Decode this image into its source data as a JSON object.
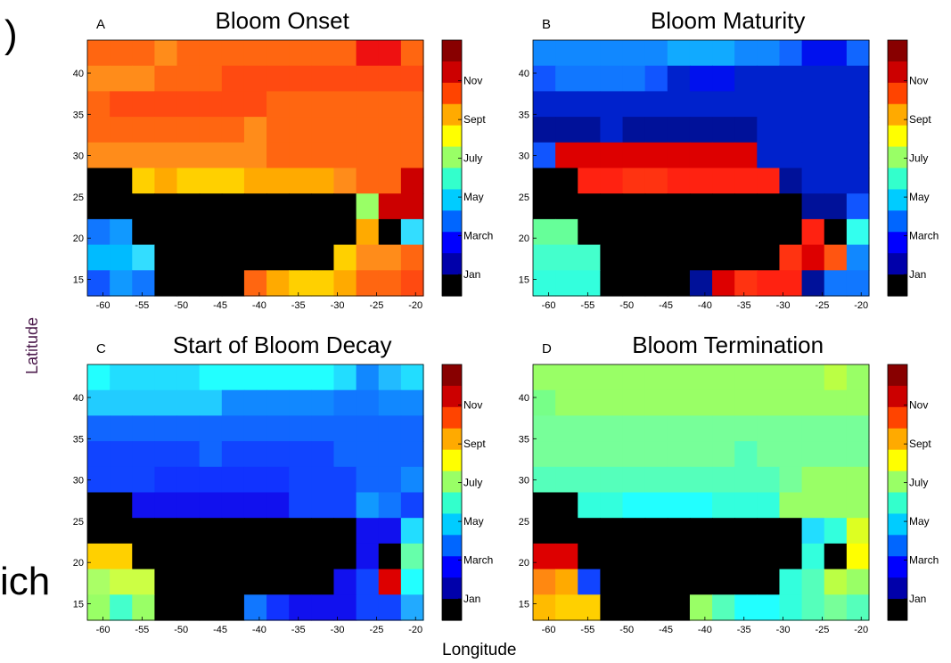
{
  "fragments": {
    "left_top": ")",
    "left_bottom": "ich"
  },
  "axis_labels": {
    "y": "Latitude",
    "x": "Longitude"
  },
  "chart_data": [
    {
      "type": "heatmap",
      "panel_letter": "A",
      "title": "Bloom Onset",
      "x_ticks": [
        "-60",
        "-55",
        "-50",
        "-45",
        "-40",
        "-35",
        "-30",
        "-25",
        "-20"
      ],
      "y_ticks": [
        "15",
        "20",
        "25",
        "30",
        "35",
        "40"
      ],
      "x_range": [
        -62,
        -19
      ],
      "y_range": [
        13,
        44
      ],
      "colorbar_ticks": [
        "Jan",
        "March",
        "May",
        "July",
        "Sept",
        "Nov"
      ],
      "colorbar_colors": [
        "#000000",
        "#0000aa",
        "#0000ff",
        "#0066ff",
        "#00ccff",
        "#33ffcc",
        "#99ff66",
        "#ffff00",
        "#ffaa00",
        "#ff4400",
        "#cc0000",
        "#880000"
      ],
      "cells": [
        [
          "#ff6611",
          "#ff6611",
          "#ff6611",
          "#ff8c1a",
          "#ff6611",
          "#ff6611",
          "#ff6611",
          "#ff6611",
          "#ff6611",
          "#ff6611",
          "#ff6611",
          "#ff6611",
          "#ee1111",
          "#ee1111",
          "#ff6611"
        ],
        [
          "#ff8c1a",
          "#ff8c1a",
          "#ff8c1a",
          "#ff6611",
          "#ff6611",
          "#ff6611",
          "#ff4a11",
          "#ff4a11",
          "#ff4a11",
          "#ff4a11",
          "#ff4a11",
          "#ff4a11",
          "#ff4a11",
          "#ff4a11",
          "#ff4a11"
        ],
        [
          "#ff6611",
          "#ff4a11",
          "#ff4a11",
          "#ff4a11",
          "#ff4a11",
          "#ff4a11",
          "#ff4a11",
          "#ff4a11",
          "#ff6611",
          "#ff6611",
          "#ff6611",
          "#ff6611",
          "#ff6611",
          "#ff6611",
          "#ff6611"
        ],
        [
          "#ff6611",
          "#ff6611",
          "#ff6611",
          "#ff6611",
          "#ff6611",
          "#ff6611",
          "#ff6611",
          "#ff8c1a",
          "#ff6611",
          "#ff6611",
          "#ff6611",
          "#ff6611",
          "#ff6611",
          "#ff6611",
          "#ff6611"
        ],
        [
          "#ff8c1a",
          "#ff8c1a",
          "#ff8c1a",
          "#ff8c1a",
          "#ff8c1a",
          "#ff8c1a",
          "#ff8c1a",
          "#ff8c1a",
          "#ff6611",
          "#ff6611",
          "#ff6611",
          "#ff6611",
          "#ff6611",
          "#ff6611",
          "#ff6611"
        ],
        [
          "#000000",
          "#000000",
          "#ffd000",
          "#ffaa00",
          "#ffd000",
          "#ffd000",
          "#ffd000",
          "#ffaa00",
          "#ffaa00",
          "#ffaa00",
          "#ffaa00",
          "#ff8c1a",
          "#ff6611",
          "#ff6611",
          "#cc0000"
        ],
        [
          "#000000",
          "#000000",
          "#000000",
          "#000000",
          "#000000",
          "#000000",
          "#000000",
          "#000000",
          "#000000",
          "#000000",
          "#000000",
          "#000000",
          "#99ff66",
          "#cc0000",
          "#cc0000"
        ],
        [
          "#1177ff",
          "#1199ff",
          "#000000",
          "#000000",
          "#000000",
          "#000000",
          "#000000",
          "#000000",
          "#000000",
          "#000000",
          "#000000",
          "#000000",
          "#ffaa00",
          "#000000",
          "#33ddff"
        ],
        [
          "#00bbff",
          "#00bbff",
          "#33ddff",
          "#000000",
          "#000000",
          "#000000",
          "#000000",
          "#000000",
          "#000000",
          "#000000",
          "#000000",
          "#ffd000",
          "#ff8c1a",
          "#ff8c1a",
          "#ff6611"
        ],
        [
          "#1155ff",
          "#1199ff",
          "#1177ff",
          "#000000",
          "#000000",
          "#000000",
          "#000000",
          "#ff6611",
          "#ffaa00",
          "#ffd000",
          "#ffd000",
          "#ffaa00",
          "#ff6611",
          "#ff6611",
          "#ff4a11"
        ]
      ]
    },
    {
      "type": "heatmap",
      "panel_letter": "B",
      "title": "Bloom Maturity",
      "x_ticks": [
        "-60",
        "-55",
        "-50",
        "-45",
        "-40",
        "-35",
        "-30",
        "-25",
        "-20"
      ],
      "y_ticks": [
        "15",
        "20",
        "25",
        "30",
        "35",
        "40"
      ],
      "x_range": [
        -62,
        -19
      ],
      "y_range": [
        13,
        44
      ],
      "colorbar_ticks": [
        "Jan",
        "March",
        "May",
        "July",
        "Sept",
        "Nov"
      ],
      "colorbar_colors": [
        "#000000",
        "#0000aa",
        "#0000ff",
        "#0066ff",
        "#00ccff",
        "#33ffcc",
        "#99ff66",
        "#ffff00",
        "#ffaa00",
        "#ff4400",
        "#cc0000",
        "#880000"
      ],
      "cells": [
        [
          "#1188ff",
          "#1188ff",
          "#1188ff",
          "#1188ff",
          "#1188ff",
          "#1188ff",
          "#11aaff",
          "#11aaff",
          "#11aaff",
          "#1188ff",
          "#1188ff",
          "#1166ff",
          "#0011ee",
          "#0011ee",
          "#1166ff"
        ],
        [
          "#1155ff",
          "#1177ff",
          "#1177ff",
          "#1177ff",
          "#1177ff",
          "#1155ff",
          "#0022cc",
          "#0011ee",
          "#0011ee",
          "#0022cc",
          "#0022cc",
          "#0022cc",
          "#0022cc",
          "#0022cc",
          "#0022cc"
        ],
        [
          "#0022cc",
          "#0022cc",
          "#0022cc",
          "#0022cc",
          "#0022cc",
          "#0022cc",
          "#0022cc",
          "#0022cc",
          "#0022cc",
          "#0022cc",
          "#0022cc",
          "#0022cc",
          "#0022cc",
          "#0022cc",
          "#0022cc"
        ],
        [
          "#001199",
          "#001199",
          "#001199",
          "#0022cc",
          "#001199",
          "#001199",
          "#001199",
          "#001199",
          "#001199",
          "#001199",
          "#0022cc",
          "#0022cc",
          "#0022cc",
          "#0022cc",
          "#0022cc"
        ],
        [
          "#1155ff",
          "#dd0000",
          "#dd0000",
          "#dd0000",
          "#dd0000",
          "#dd0000",
          "#dd0000",
          "#dd0000",
          "#dd0000",
          "#dd0000",
          "#0022cc",
          "#0022cc",
          "#0022cc",
          "#0022cc",
          "#0022cc"
        ],
        [
          "#000000",
          "#000000",
          "#ff2211",
          "#ff2211",
          "#ff3311",
          "#ff3311",
          "#ff2211",
          "#ff2211",
          "#ff2211",
          "#ff2211",
          "#ff2211",
          "#001199",
          "#0022cc",
          "#0022cc",
          "#0022cc"
        ],
        [
          "#000000",
          "#000000",
          "#000000",
          "#000000",
          "#000000",
          "#000000",
          "#000000",
          "#000000",
          "#000000",
          "#000000",
          "#000000",
          "#000000",
          "#001199",
          "#001199",
          "#1155ff"
        ],
        [
          "#66ff99",
          "#66ff99",
          "#000000",
          "#000000",
          "#000000",
          "#000000",
          "#000000",
          "#000000",
          "#000000",
          "#000000",
          "#000000",
          "#000000",
          "#ff2211",
          "#000000",
          "#33ffee"
        ],
        [
          "#44ffcc",
          "#44ffcc",
          "#44ffcc",
          "#000000",
          "#000000",
          "#000000",
          "#000000",
          "#000000",
          "#000000",
          "#000000",
          "#000000",
          "#ff3311",
          "#dd0000",
          "#ff5511",
          "#1188ff"
        ],
        [
          "#33ffdd",
          "#33ffdd",
          "#33ffdd",
          "#000000",
          "#000000",
          "#000000",
          "#000000",
          "#001199",
          "#dd0000",
          "#ff3311",
          "#ff2211",
          "#ff2211",
          "#001199",
          "#1177ff",
          "#1177ff"
        ]
      ]
    },
    {
      "type": "heatmap",
      "panel_letter": "C",
      "title": "Start of Bloom Decay",
      "x_ticks": [
        "-60",
        "-55",
        "-50",
        "-45",
        "-40",
        "-35",
        "-30",
        "-25",
        "-20"
      ],
      "y_ticks": [
        "15",
        "20",
        "25",
        "30",
        "35",
        "40"
      ],
      "x_range": [
        -62,
        -19
      ],
      "y_range": [
        13,
        44
      ],
      "colorbar_ticks": [
        "Jan",
        "March",
        "May",
        "July",
        "Sept",
        "Nov"
      ],
      "colorbar_colors": [
        "#000000",
        "#0000aa",
        "#0000ff",
        "#0066ff",
        "#00ccff",
        "#33ffcc",
        "#99ff66",
        "#ffff00",
        "#ffaa00",
        "#ff4400",
        "#cc0000",
        "#880000"
      ],
      "cells": [
        [
          "#22ffff",
          "#22ddff",
          "#22ddff",
          "#22ddff",
          "#22ddff",
          "#22ffff",
          "#22ffff",
          "#22ffff",
          "#22ffff",
          "#22ffff",
          "#22ffff",
          "#22ddff",
          "#1188ff",
          "#22bbff",
          "#22ddff"
        ],
        [
          "#22ccff",
          "#22ccff",
          "#22ccff",
          "#22ccff",
          "#22ccff",
          "#22ccff",
          "#1188ff",
          "#1188ff",
          "#1188ff",
          "#1188ff",
          "#1188ff",
          "#1177ff",
          "#1177ff",
          "#1188ff",
          "#1188ff"
        ],
        [
          "#1166ff",
          "#1166ff",
          "#1166ff",
          "#1166ff",
          "#1166ff",
          "#1166ff",
          "#1166ff",
          "#1166ff",
          "#1166ff",
          "#1166ff",
          "#1166ff",
          "#1166ff",
          "#1166ff",
          "#1166ff",
          "#1166ff"
        ],
        [
          "#1144ff",
          "#1144ff",
          "#1144ff",
          "#1144ff",
          "#1144ff",
          "#1166ff",
          "#1144ff",
          "#1144ff",
          "#1144ff",
          "#1144ff",
          "#1144ff",
          "#1166ff",
          "#1166ff",
          "#1166ff",
          "#1166ff"
        ],
        [
          "#1144ff",
          "#1144ff",
          "#1144ff",
          "#1133ff",
          "#1133ff",
          "#1133ff",
          "#1133ff",
          "#1133ff",
          "#1133ff",
          "#1144ff",
          "#1144ff",
          "#1144ff",
          "#1166ff",
          "#1166ff",
          "#1188ff"
        ],
        [
          "#000000",
          "#000000",
          "#1111ee",
          "#1111ee",
          "#1111ee",
          "#1111ee",
          "#1111ee",
          "#1111ee",
          "#1111ee",
          "#1144ff",
          "#1144ff",
          "#1144ff",
          "#1199ff",
          "#1177ff",
          "#1144ff"
        ],
        [
          "#000000",
          "#000000",
          "#000000",
          "#000000",
          "#000000",
          "#000000",
          "#000000",
          "#000000",
          "#000000",
          "#000000",
          "#000000",
          "#000000",
          "#1111ee",
          "#1111ee",
          "#22ddff"
        ],
        [
          "#ffd000",
          "#ffd000",
          "#000000",
          "#000000",
          "#000000",
          "#000000",
          "#000000",
          "#000000",
          "#000000",
          "#000000",
          "#000000",
          "#000000",
          "#1111ee",
          "#000000",
          "#66ffaa"
        ],
        [
          "#aaff66",
          "#ccff44",
          "#ccff44",
          "#000000",
          "#000000",
          "#000000",
          "#000000",
          "#000000",
          "#000000",
          "#000000",
          "#000000",
          "#1111ee",
          "#1144ff",
          "#dd0000",
          "#22ffff"
        ],
        [
          "#99ff66",
          "#44ffcc",
          "#99ff66",
          "#000000",
          "#000000",
          "#000000",
          "#000000",
          "#1177ff",
          "#1133ff",
          "#1111ee",
          "#1111ee",
          "#1111ee",
          "#1144ff",
          "#1144ff",
          "#22aaff"
        ]
      ]
    },
    {
      "type": "heatmap",
      "panel_letter": "D",
      "title": "Bloom Termination",
      "x_ticks": [
        "-60",
        "-55",
        "-50",
        "-45",
        "-40",
        "-35",
        "-30",
        "-25",
        "-20"
      ],
      "y_ticks": [
        "15",
        "20",
        "25",
        "30",
        "35",
        "40"
      ],
      "x_range": [
        -62,
        -19
      ],
      "y_range": [
        13,
        44
      ],
      "colorbar_ticks": [
        "Jan",
        "March",
        "May",
        "July",
        "Sept",
        "Nov"
      ],
      "colorbar_colors": [
        "#000000",
        "#0000aa",
        "#0000ff",
        "#0066ff",
        "#00ccff",
        "#33ffcc",
        "#99ff66",
        "#ffff00",
        "#ffaa00",
        "#ff4400",
        "#cc0000",
        "#880000"
      ],
      "cells": [
        [
          "#99ff66",
          "#99ff66",
          "#99ff66",
          "#99ff66",
          "#99ff66",
          "#99ff66",
          "#99ff66",
          "#99ff66",
          "#99ff66",
          "#99ff66",
          "#99ff66",
          "#99ff66",
          "#99ff66",
          "#bbff44",
          "#99ff66"
        ],
        [
          "#77ff88",
          "#99ff66",
          "#99ff66",
          "#99ff66",
          "#99ff66",
          "#99ff66",
          "#99ff66",
          "#99ff66",
          "#99ff66",
          "#99ff66",
          "#99ff66",
          "#99ff66",
          "#99ff66",
          "#99ff66",
          "#99ff66"
        ],
        [
          "#77ff99",
          "#77ff99",
          "#77ff99",
          "#77ff99",
          "#77ff99",
          "#77ff99",
          "#77ff99",
          "#77ff99",
          "#77ff99",
          "#77ff99",
          "#77ff99",
          "#77ff99",
          "#77ff99",
          "#77ff99",
          "#77ff99"
        ],
        [
          "#77ff99",
          "#77ff99",
          "#77ff99",
          "#77ff99",
          "#77ff99",
          "#77ff99",
          "#77ff99",
          "#77ff99",
          "#77ff99",
          "#55ffbb",
          "#77ff99",
          "#77ff99",
          "#77ff99",
          "#77ff99",
          "#77ff99"
        ],
        [
          "#55ffbb",
          "#55ffbb",
          "#55ffbb",
          "#55ffbb",
          "#55ffbb",
          "#55ffbb",
          "#55ffbb",
          "#55ffbb",
          "#55ffbb",
          "#55ffbb",
          "#55ffbb",
          "#77ff99",
          "#99ff66",
          "#99ff66",
          "#99ff66"
        ],
        [
          "#000000",
          "#000000",
          "#33ffdd",
          "#33ffdd",
          "#22ffff",
          "#22ffff",
          "#22ffff",
          "#22ffff",
          "#33ffdd",
          "#33ffdd",
          "#33ffdd",
          "#99ff66",
          "#99ff66",
          "#99ff66",
          "#99ff66"
        ],
        [
          "#000000",
          "#000000",
          "#000000",
          "#000000",
          "#000000",
          "#000000",
          "#000000",
          "#000000",
          "#000000",
          "#000000",
          "#000000",
          "#000000",
          "#22ddff",
          "#33ffdd",
          "#ddff22"
        ],
        [
          "#dd0000",
          "#dd0000",
          "#000000",
          "#000000",
          "#000000",
          "#000000",
          "#000000",
          "#000000",
          "#000000",
          "#000000",
          "#000000",
          "#000000",
          "#33ffdd",
          "#000000",
          "#ffff00"
        ],
        [
          "#ff8811",
          "#ffaa00",
          "#1144ff",
          "#000000",
          "#000000",
          "#000000",
          "#000000",
          "#000000",
          "#000000",
          "#000000",
          "#000000",
          "#33ffdd",
          "#55ffbb",
          "#bbff44",
          "#99ff66"
        ],
        [
          "#ffbb00",
          "#ffd000",
          "#ffd000",
          "#000000",
          "#000000",
          "#000000",
          "#000000",
          "#99ff66",
          "#55ffbb",
          "#22ffff",
          "#22ffff",
          "#33ffdd",
          "#55ffbb",
          "#77ff99",
          "#55ffbb"
        ]
      ]
    }
  ]
}
